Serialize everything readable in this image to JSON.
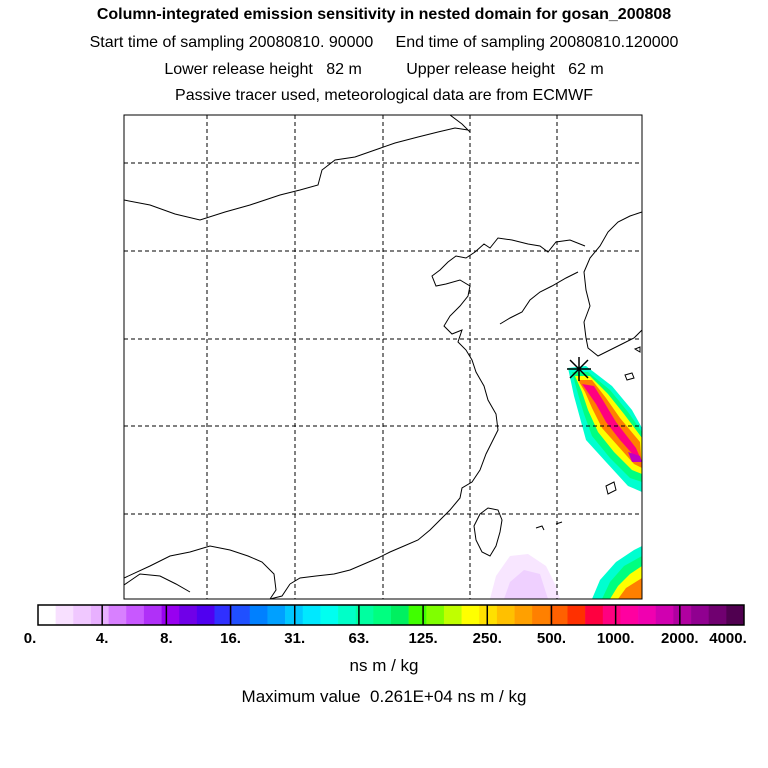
{
  "header": {
    "title": "Column-integrated emission sensitivity in nested domain for gosan_200808",
    "sampling_line": "Start time of sampling 20080810. 90000     End time of sampling 20080810.120000",
    "release_line": "Lower release height   82 m          Upper release height   62 m",
    "info_line": "Passive tracer used, meteorological data are from ECMWF"
  },
  "map": {
    "release_marker": "star-cross-icon",
    "gridlines": "dashed",
    "plume_colors": [
      "#00ffd0",
      "#00ff80",
      "#ffff00",
      "#ff7f00",
      "#ff0080",
      "#c000c0"
    ]
  },
  "colorbar": {
    "tick_labels": [
      "0.",
      "4.",
      "8.",
      "16.",
      "31.",
      "63.",
      "125.",
      "250.",
      "500.",
      "1000.",
      "2000.",
      "4000."
    ],
    "colors": [
      "#ffffff",
      "#f8e0ff",
      "#f0c8ff",
      "#e8b0ff",
      "#d880ff",
      "#c858ff",
      "#b030f8",
      "#9800f0",
      "#7000e8",
      "#5000f0",
      "#3030ff",
      "#2050ff",
      "#0080ff",
      "#00a0ff",
      "#00c8ff",
      "#00e8ff",
      "#00fff0",
      "#00ffc8",
      "#00ffa0",
      "#00ff80",
      "#00f060",
      "#40ff00",
      "#80ff00",
      "#c0ff00",
      "#ffff00",
      "#ffe000",
      "#ffc000",
      "#ffa000",
      "#ff8000",
      "#ff6000",
      "#ff3000",
      "#ff0040",
      "#ff0080",
      "#ff00a0",
      "#f000b0",
      "#d000b0",
      "#b000a0",
      "#900090",
      "#700070",
      "#500050"
    ],
    "units": "ns m / kg"
  },
  "footer": {
    "max_value": "Maximum value  0.261E+04 ns m / kg"
  }
}
